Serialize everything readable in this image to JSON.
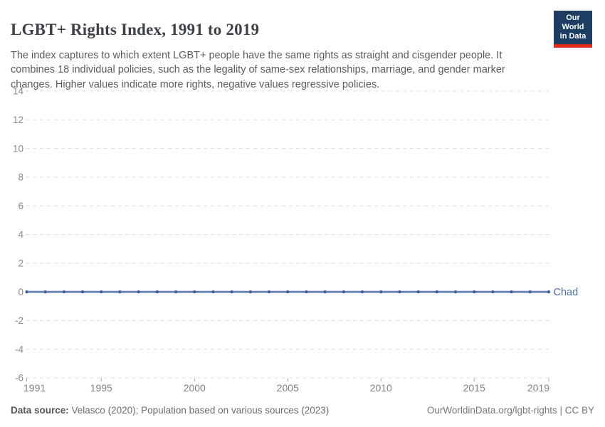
{
  "header": {
    "title": "LGBT+ Rights Index, 1991 to 2019",
    "subtitle": "The index captures to which extent LGBT+ people have the same rights as straight and cisgender people. It combines 18 individual policies, such as the legality of same-sex relationships, marriage, and gender marker changes. Higher values indicate more rights, negative values regressive policies.",
    "logo": {
      "line1": "Our World",
      "line2": "in Data",
      "bg_color": "#1d3d63",
      "accent_color": "#dc2a1b"
    }
  },
  "chart_data": {
    "type": "line",
    "title": "LGBT+ Rights Index, 1991 to 2019",
    "xlabel": "",
    "ylabel": "",
    "x": [
      1991,
      1992,
      1993,
      1994,
      1995,
      1996,
      1997,
      1998,
      1999,
      2000,
      2001,
      2002,
      2003,
      2004,
      2005,
      2006,
      2007,
      2008,
      2009,
      2010,
      2011,
      2012,
      2013,
      2014,
      2015,
      2016,
      2017,
      2018,
      2019
    ],
    "series": [
      {
        "name": "Chad",
        "values": [
          0,
          0,
          0,
          0,
          0,
          0,
          0,
          0,
          0,
          0,
          0,
          0,
          0,
          0,
          0,
          0,
          0,
          0,
          0,
          0,
          0,
          0,
          0,
          0,
          0,
          0,
          0,
          0,
          0
        ],
        "line_color": "#5d7db8",
        "point_color": "#3d5c9d",
        "label_color": "#4a6fb5"
      }
    ],
    "xlim": [
      1991,
      2019
    ],
    "ylim": [
      -6,
      14
    ],
    "xticks": [
      1991,
      1995,
      2000,
      2005,
      2010,
      2015,
      2019
    ],
    "yticks": [
      14,
      12,
      10,
      8,
      6,
      4,
      2,
      0,
      -2,
      -4,
      -6
    ],
    "grid": "horizontal-dashed",
    "zero_line": true,
    "legend_position": "end-of-line-label",
    "markers": true
  },
  "footer": {
    "source_label": "Data source:",
    "source_text": " Velasco (2020); Population based on various sources (2023)",
    "attribution": "OurWorldinData.org/lgbt-rights | CC BY"
  }
}
